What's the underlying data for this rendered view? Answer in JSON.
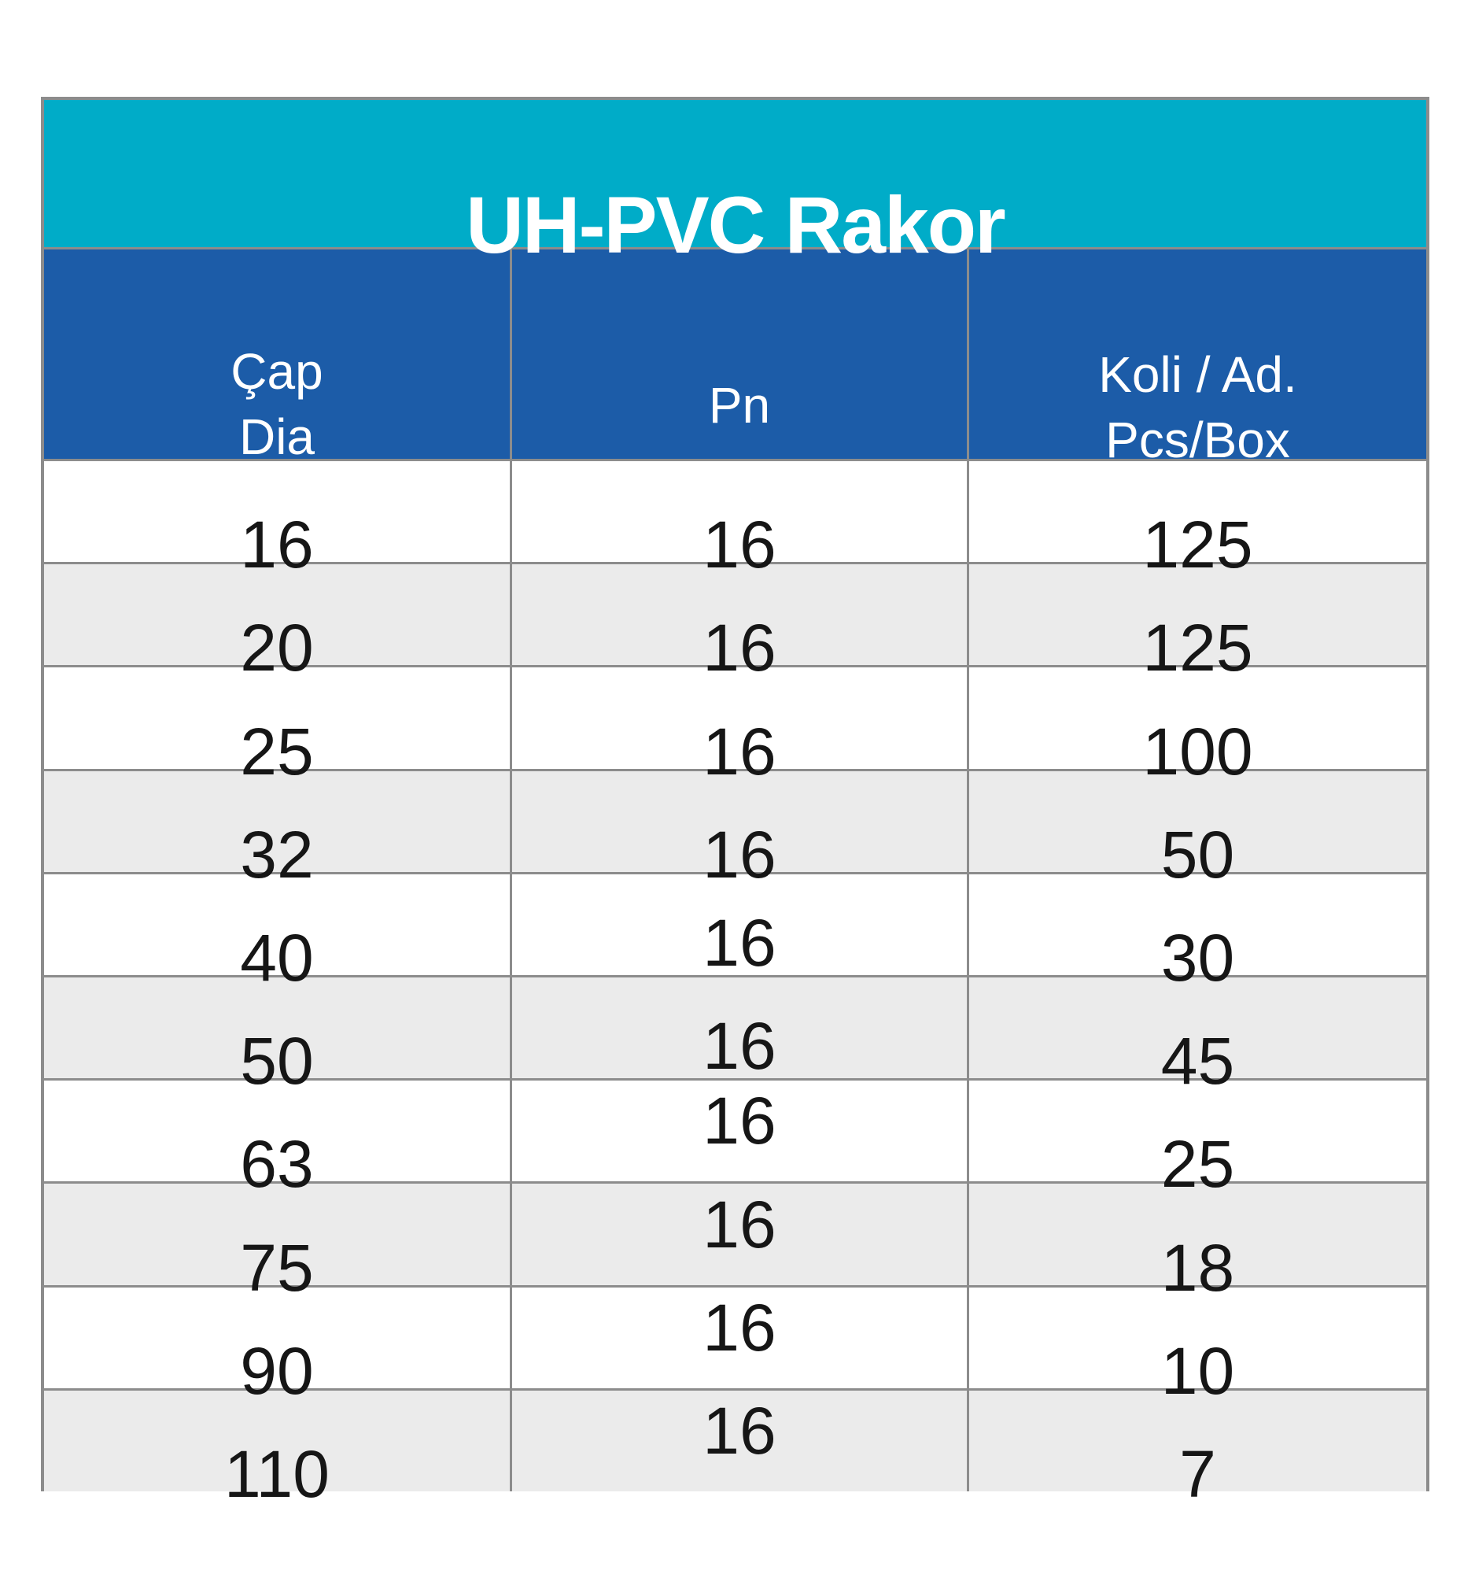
{
  "theme": {
    "band_color": "#00ACC8",
    "header_color": "#1C5CA8",
    "stripe_color": "#EBEBEB",
    "border_color": "#8C8C8C",
    "title_text_color": "#FFFFFF",
    "body_text_color": "#161616"
  },
  "table": {
    "title": "UH-PVC Rakor",
    "columns": {
      "dia": {
        "line1": "Çap",
        "line2": "Dia"
      },
      "pn": {
        "line1": "Pn"
      },
      "koli": {
        "line1": "Koli / Ad.",
        "line2": "Pcs/Box"
      }
    },
    "rows": [
      {
        "dia": "16",
        "pn": "16",
        "koli": "125"
      },
      {
        "dia": "20",
        "pn": "16",
        "koli": "125"
      },
      {
        "dia": "25",
        "pn": "16",
        "koli": "100"
      },
      {
        "dia": "32",
        "pn": "16",
        "koli": "50"
      },
      {
        "dia": "40",
        "pn": "16",
        "koli": "30"
      },
      {
        "dia": "50",
        "pn": "16",
        "koli": "45"
      },
      {
        "dia": "63",
        "pn": "16",
        "koli": "25"
      },
      {
        "dia": "75",
        "pn": "16",
        "koli": "18"
      },
      {
        "dia": "90",
        "pn": "16",
        "koli": "10"
      },
      {
        "dia": "110",
        "pn": "16",
        "koli": "7"
      }
    ]
  }
}
